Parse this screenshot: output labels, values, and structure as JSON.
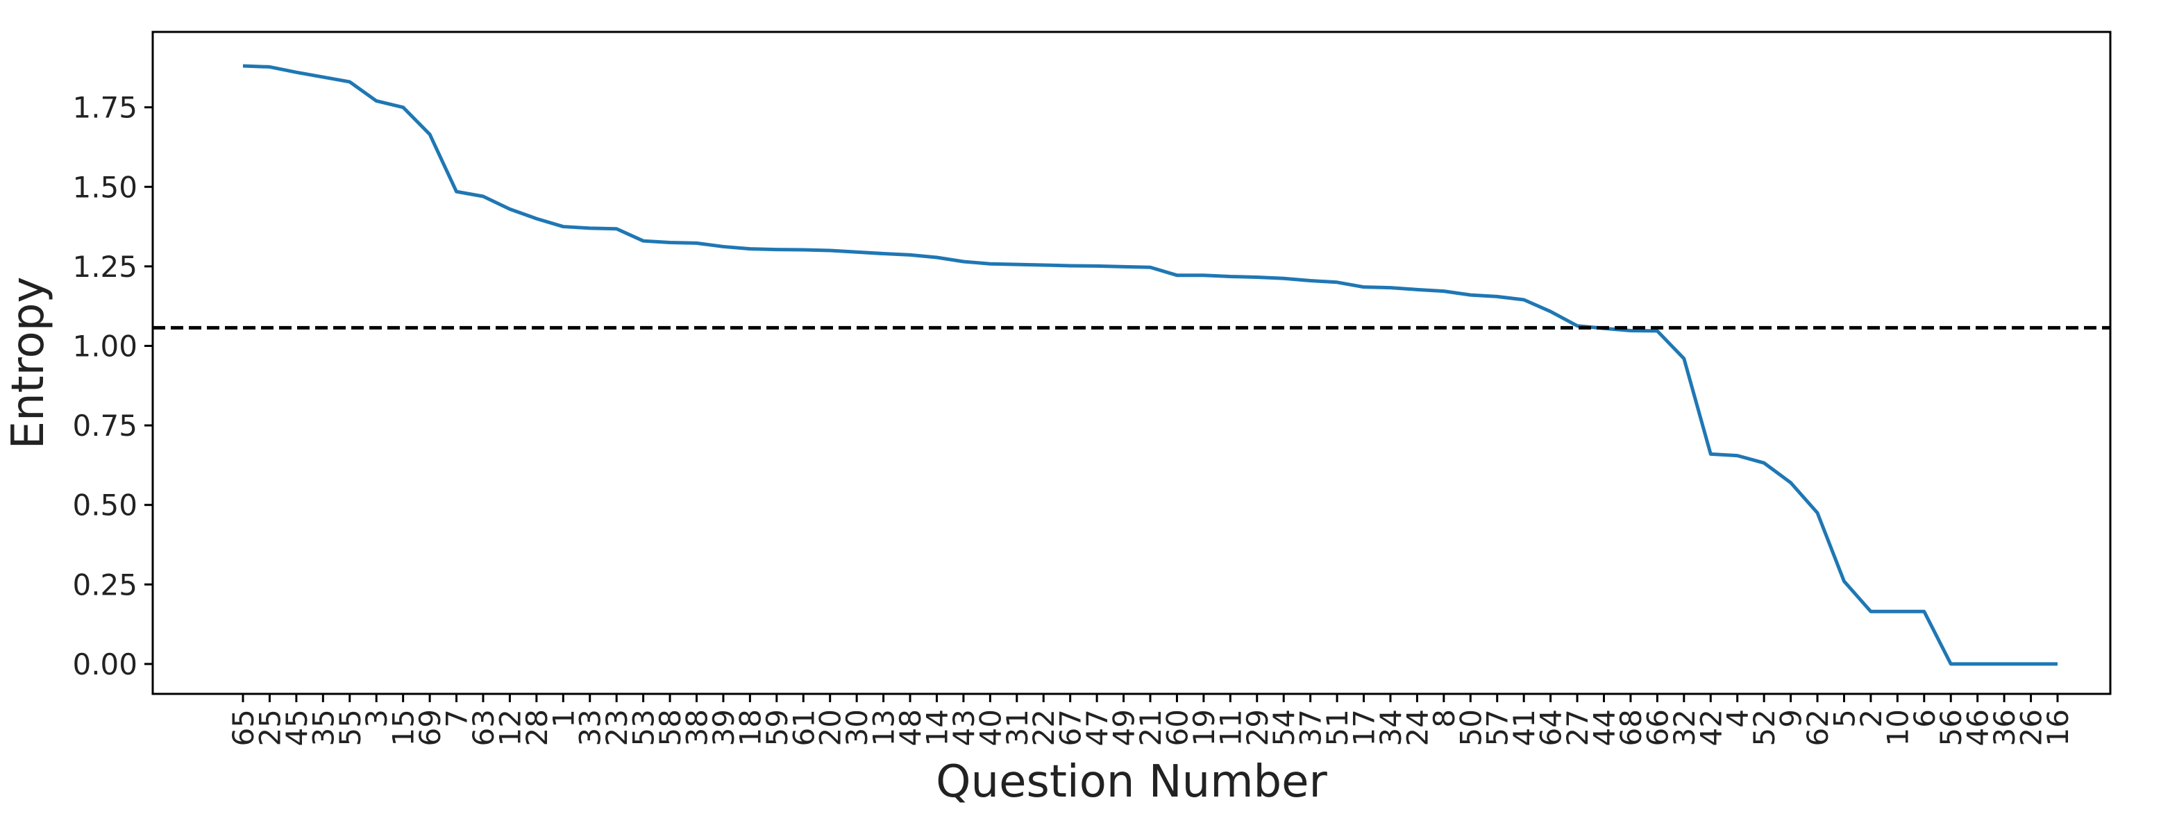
{
  "chart_data": {
    "type": "line",
    "x_label": "Question Number",
    "y_label": "Entropy",
    "categories": [
      "65",
      "25",
      "45",
      "35",
      "55",
      "3",
      "15",
      "69",
      "7",
      "63",
      "12",
      "28",
      "1",
      "33",
      "23",
      "53",
      "58",
      "38",
      "39",
      "18",
      "59",
      "61",
      "20",
      "30",
      "13",
      "48",
      "14",
      "43",
      "40",
      "31",
      "22",
      "67",
      "47",
      "49",
      "21",
      "60",
      "19",
      "11",
      "29",
      "54",
      "37",
      "51",
      "17",
      "34",
      "24",
      "8",
      "50",
      "57",
      "41",
      "64",
      "27",
      "44",
      "68",
      "66",
      "32",
      "42",
      "4",
      "52",
      "9",
      "62",
      "5",
      "2",
      "10",
      "6",
      "56",
      "46",
      "36",
      "26",
      "16"
    ],
    "series": [
      {
        "color": "#1f77b4",
        "values": [
          1.88,
          1.877,
          1.86,
          1.845,
          1.83,
          1.77,
          1.75,
          1.665,
          1.485,
          1.47,
          1.43,
          1.4,
          1.375,
          1.37,
          1.368,
          1.33,
          1.325,
          1.323,
          1.312,
          1.305,
          1.303,
          1.302,
          1.3,
          1.295,
          1.29,
          1.286,
          1.278,
          1.265,
          1.258,
          1.256,
          1.254,
          1.252,
          1.251,
          1.249,
          1.247,
          1.222,
          1.222,
          1.218,
          1.216,
          1.212,
          1.205,
          1.2,
          1.185,
          1.183,
          1.177,
          1.172,
          1.16,
          1.155,
          1.145,
          1.108,
          1.063,
          1.055,
          1.048,
          1.047,
          0.96,
          0.66,
          0.655,
          0.632,
          0.57,
          0.475,
          0.26,
          0.165,
          0.165,
          0.165,
          0,
          0,
          0,
          0,
          0
        ]
      }
    ],
    "threshold": 1.057,
    "ylim": [
      -0.094,
      1.987
    ],
    "yticks": [
      {
        "value": 0,
        "label": "0.00"
      },
      {
        "value": 0.25,
        "label": "0.25"
      },
      {
        "value": 0.5,
        "label": "0.50"
      },
      {
        "value": 0.75,
        "label": "0.75"
      },
      {
        "value": 1,
        "label": "1.00"
      },
      {
        "value": 1.25,
        "label": "1.25"
      },
      {
        "value": 1.5,
        "label": "1.50"
      },
      {
        "value": 1.75,
        "label": "1.75"
      }
    ]
  }
}
